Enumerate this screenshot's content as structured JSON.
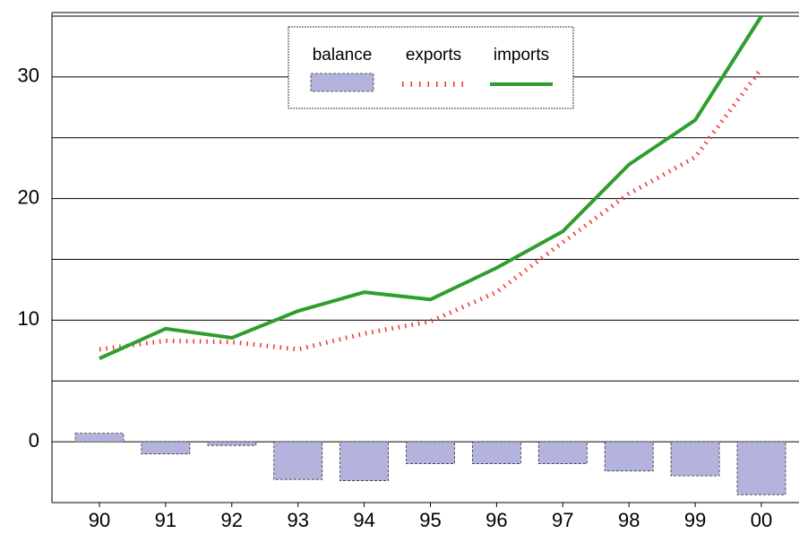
{
  "chart_data": {
    "type": "bar_line",
    "categories": [
      "90",
      "91",
      "92",
      "93",
      "94",
      "95",
      "96",
      "97",
      "98",
      "99",
      "00"
    ],
    "series": [
      {
        "name": "balance",
        "type": "bar",
        "color": "#b3b3dd",
        "values": [
          0.7,
          -1,
          -0.3,
          -3.1,
          -3.2,
          -1.8,
          -1.8,
          -1.8,
          -2.4,
          -2.8,
          -4.35
        ]
      },
      {
        "name": "exports",
        "type": "line",
        "color": "#ee3333",
        "values": [
          7.6,
          8.3,
          8.2,
          7.6,
          8.9,
          9.9,
          12.3,
          16.4,
          20.4,
          23.4,
          30.7
        ]
      },
      {
        "name": "imports",
        "type": "line",
        "color": "#2e9e2e",
        "values": [
          6.85,
          9.3,
          8.55,
          10.75,
          12.3,
          11.7,
          14.3,
          17.3,
          22.8,
          26.45,
          35
        ]
      }
    ],
    "ylim": [
      -5,
      35
    ],
    "yticks": [
      0,
      10,
      20,
      30
    ],
    "minor_grid": [
      5,
      15,
      25,
      35
    ],
    "grid": true
  }
}
